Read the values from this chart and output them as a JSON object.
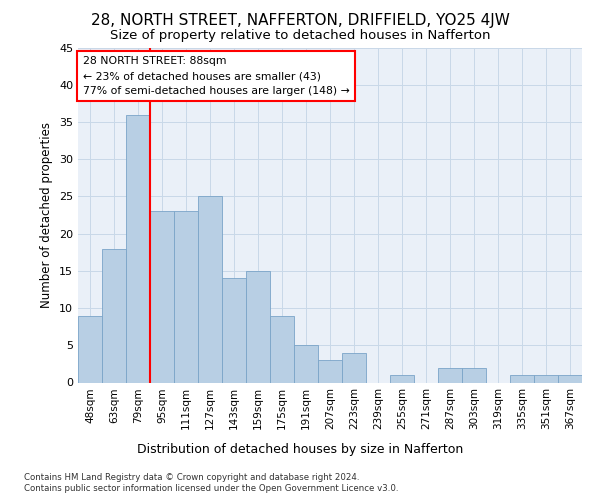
{
  "title": "28, NORTH STREET, NAFFERTON, DRIFFIELD, YO25 4JW",
  "subtitle": "Size of property relative to detached houses in Nafferton",
  "xlabel_bottom": "Distribution of detached houses by size in Nafferton",
  "ylabel": "Number of detached properties",
  "footnote1": "Contains HM Land Registry data © Crown copyright and database right 2024.",
  "footnote2": "Contains public sector information licensed under the Open Government Licence v3.0.",
  "categories": [
    "48sqm",
    "63sqm",
    "79sqm",
    "95sqm",
    "111sqm",
    "127sqm",
    "143sqm",
    "159sqm",
    "175sqm",
    "191sqm",
    "207sqm",
    "223sqm",
    "239sqm",
    "255sqm",
    "271sqm",
    "287sqm",
    "303sqm",
    "319sqm",
    "335sqm",
    "351sqm",
    "367sqm"
  ],
  "values": [
    9,
    18,
    36,
    23,
    23,
    25,
    14,
    15,
    9,
    5,
    3,
    4,
    0,
    1,
    0,
    2,
    2,
    0,
    1,
    1,
    1
  ],
  "bar_color": "#b8cfe4",
  "bar_edge_color": "#7aa4c8",
  "vline_color": "red",
  "annotation_title": "28 NORTH STREET: 88sqm",
  "annotation_line2": "← 23% of detached houses are smaller (43)",
  "annotation_line3": "77% of semi-detached houses are larger (148) →",
  "ylim": [
    0,
    45
  ],
  "yticks": [
    0,
    5,
    10,
    15,
    20,
    25,
    30,
    35,
    40,
    45
  ],
  "grid_color": "#c8d8e8",
  "bg_color": "#eaf0f8"
}
